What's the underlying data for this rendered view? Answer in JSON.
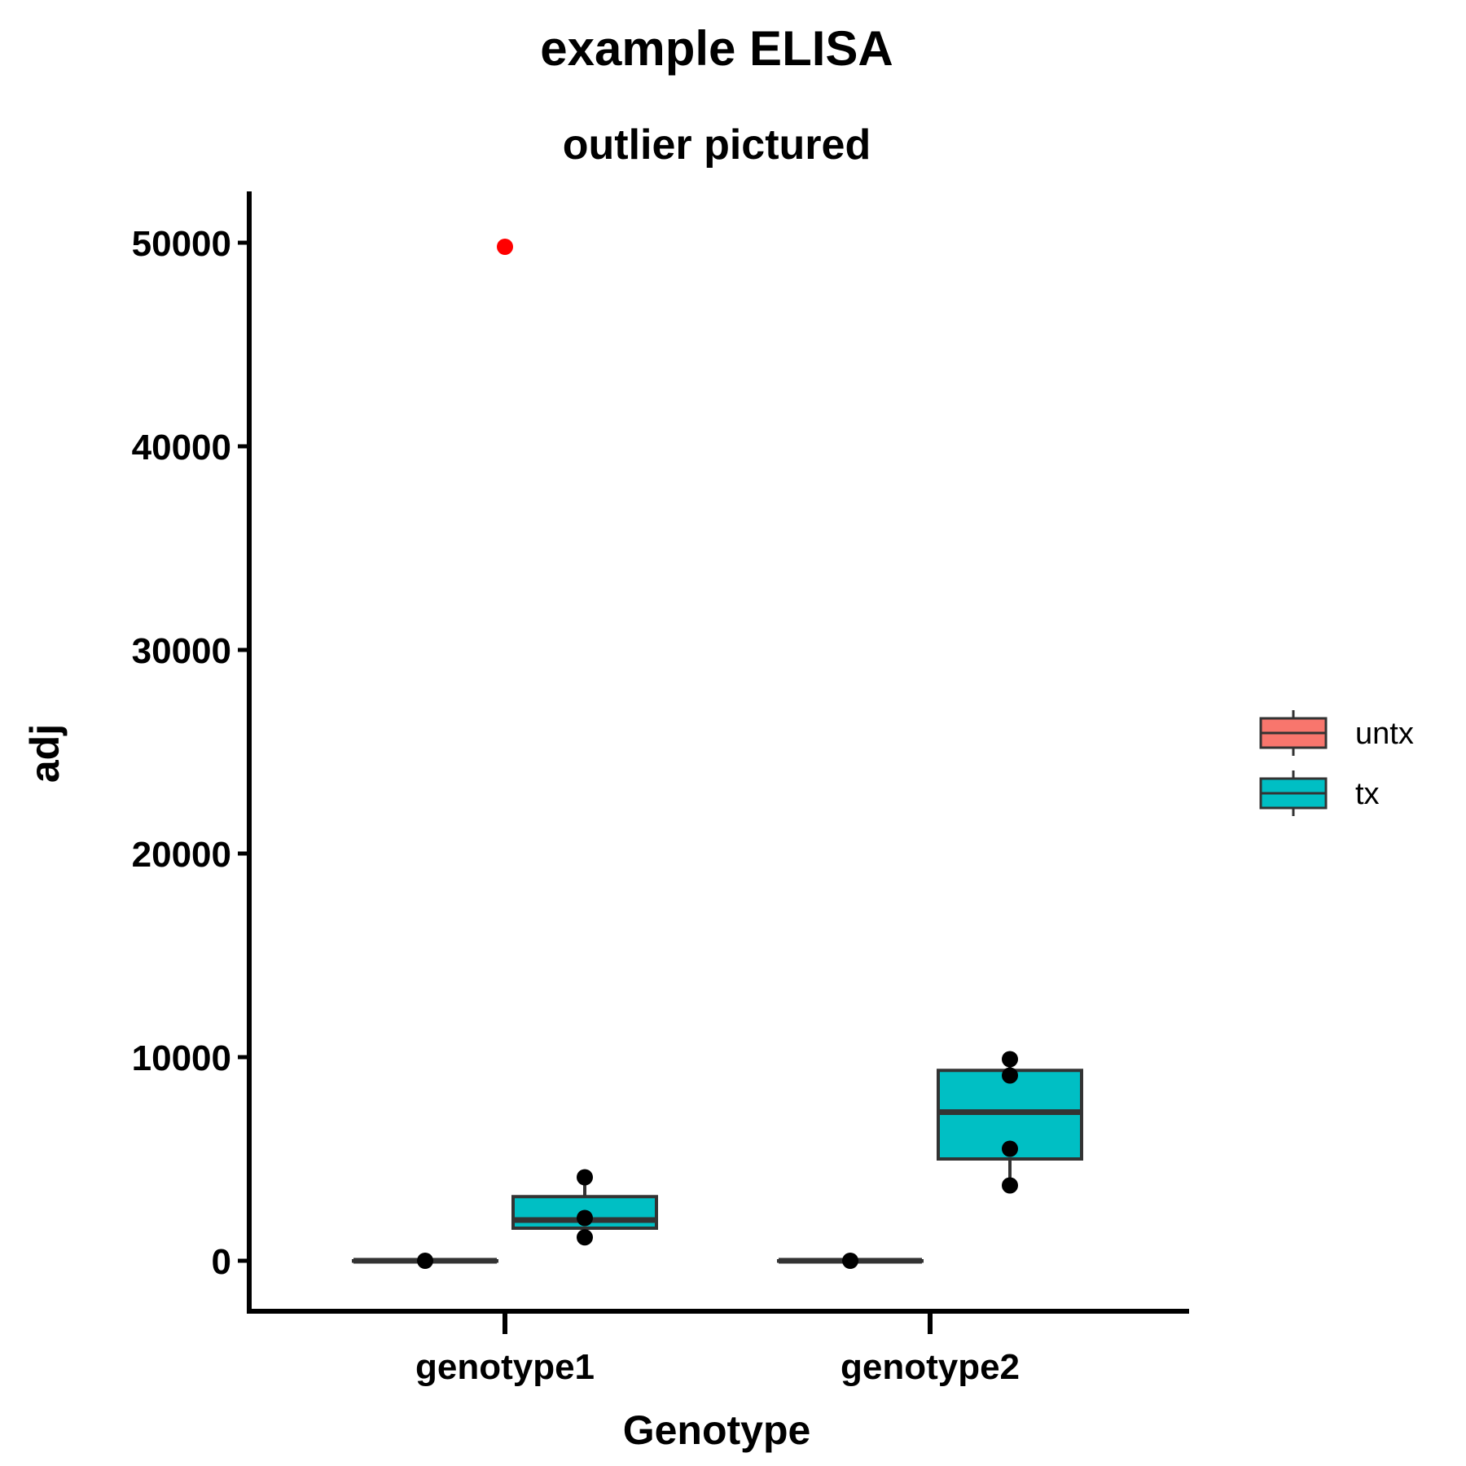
{
  "chart_data": {
    "type": "box",
    "title": "example ELISA",
    "subtitle": "outlier pictured",
    "xlabel": "Genotype",
    "ylabel": "adj",
    "categories": [
      "genotype1",
      "genotype2"
    ],
    "ylim": [
      -2500,
      52500
    ],
    "yticks": [
      0,
      10000,
      20000,
      30000,
      40000,
      50000
    ],
    "ytick_labels": [
      "0",
      "10000",
      "20000",
      "30000",
      "40000",
      "50000"
    ],
    "legend": {
      "position": "right"
    },
    "series": [
      {
        "name": "untx",
        "color": "#F8766D",
        "boxes": [
          {
            "category": "genotype1",
            "whisker_low": 0,
            "q1": 0,
            "median": 0,
            "q3": 0,
            "whisker_high": 0,
            "points": [
              0
            ]
          },
          {
            "category": "genotype2",
            "whisker_low": 0,
            "q1": 0,
            "median": 0,
            "q3": 0,
            "whisker_high": 0,
            "points": [
              0
            ]
          }
        ]
      },
      {
        "name": "tx",
        "color": "#00BFC4",
        "boxes": [
          {
            "category": "genotype1",
            "whisker_low": 1600,
            "q1": 1600,
            "median": 2000,
            "q3": 3150,
            "whisker_high": 4100,
            "points": [
              4100,
              2100,
              1150
            ]
          },
          {
            "category": "genotype2",
            "whisker_low": 3700,
            "q1": 5000,
            "median": 7300,
            "q3": 9350,
            "whisker_high": 9900,
            "points": [
              9900,
              9100,
              5500,
              3700
            ]
          }
        ]
      }
    ],
    "highlighted_points": [
      {
        "category": "genotype1",
        "value": 49800,
        "color": "#FF0000"
      }
    ]
  }
}
